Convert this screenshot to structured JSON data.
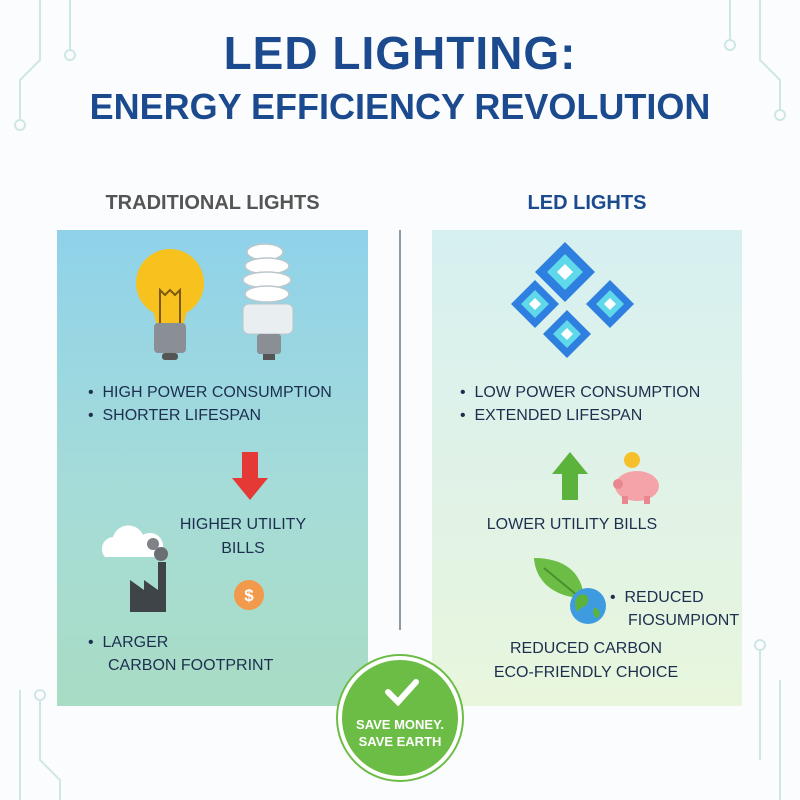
{
  "title": {
    "line1": "LED LIGHTING:",
    "line2": "ENERGY EFFICIENCY REVOLUTION"
  },
  "traditional": {
    "heading": "TRADITIONAL LIGHTS",
    "bullets": [
      "HIGH POWER CONSUMPTION",
      "SHORTER LIFESPAN"
    ],
    "bills_line1": "HIGHER UTILITY",
    "bills_line2": "BILLS",
    "carbon_line1": "LARGER",
    "carbon_line2": "CARBON FOOTPRINT"
  },
  "led": {
    "heading": "LED LIGHTS",
    "bullets": [
      "LOW POWER CONSUMPTION",
      "EXTENDED LIFESPAN"
    ],
    "bills": "LOWER UTILITY BILLS",
    "reduced_line1": "REDUCED",
    "reduced_line2": "FIOSUMPIONT",
    "carbon_line1": "REDUCED CARBON",
    "carbon_line2": "ECO-FRIENDLY CHOICE"
  },
  "badge": {
    "line1": "SAVE MONEY.",
    "line2": "SAVE EARTH"
  },
  "colors": {
    "title": "#1b4a8e",
    "red_arrow": "#e53935",
    "green_arrow": "#5bb33c",
    "badge": "#6cbd45"
  }
}
